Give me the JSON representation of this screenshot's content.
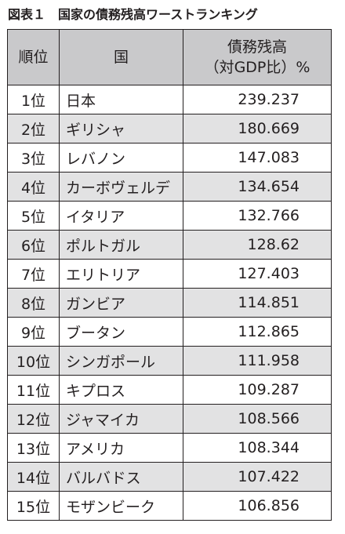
{
  "title": {
    "label": "図表１",
    "text": "国家の債務残高ワーストランキング"
  },
  "table": {
    "headers": {
      "rank": "順位",
      "country": "国",
      "value_line1": "債務残高",
      "value_line2": "（対GDP比）%"
    },
    "rows": [
      {
        "rank": "1位",
        "country": "日本",
        "value": "239.237"
      },
      {
        "rank": "2位",
        "country": "ギリシャ",
        "value": "180.669"
      },
      {
        "rank": "3位",
        "country": "レバノン",
        "value": "147.083"
      },
      {
        "rank": "4位",
        "country": "カーボヴェルデ",
        "value": "134.654"
      },
      {
        "rank": "5位",
        "country": "イタリア",
        "value": "132.766"
      },
      {
        "rank": "6位",
        "country": "ポルトガル",
        "value": "128.62"
      },
      {
        "rank": "7位",
        "country": "エリトリア",
        "value": "127.403"
      },
      {
        "rank": "8位",
        "country": "ガンビア",
        "value": "114.851"
      },
      {
        "rank": "9位",
        "country": "ブータン",
        "value": "112.865"
      },
      {
        "rank": "10位",
        "country": "シンガポール",
        "value": "111.958"
      },
      {
        "rank": "11位",
        "country": "キプロス",
        "value": "109.287"
      },
      {
        "rank": "12位",
        "country": "ジャマイカ",
        "value": "108.566"
      },
      {
        "rank": "13位",
        "country": "アメリカ",
        "value": "108.344"
      },
      {
        "rank": "14位",
        "country": "バルバドス",
        "value": "107.422"
      },
      {
        "rank": "15位",
        "country": "モザンビーク",
        "value": "106.856"
      }
    ]
  },
  "colors": {
    "header_background": "#c9c9cb",
    "alternate_row_background": "#e2e2e3",
    "border": "#231f20"
  }
}
